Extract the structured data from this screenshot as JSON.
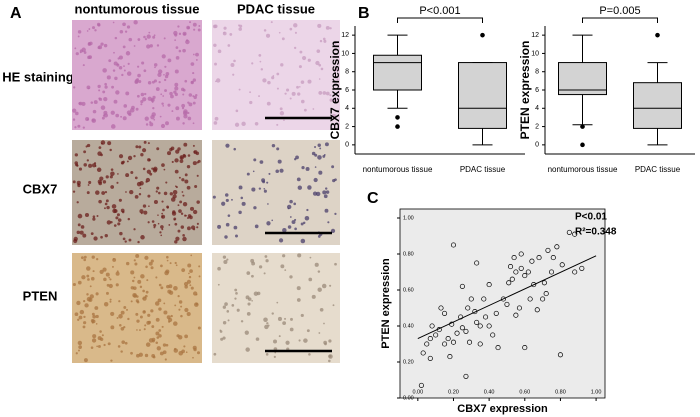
{
  "figure": {
    "panel_labels": [
      "A",
      "B",
      "C"
    ],
    "columns": [
      "nontumorous tissue",
      "PDAC tissue"
    ],
    "rows": [
      "HE staining",
      "CBX7",
      "PTEN"
    ]
  },
  "chart_data": [
    {
      "type": "box",
      "ylabel": "CBX7 expression",
      "annotation": "P<0.001",
      "categories": [
        "nontumorous tissue",
        "PDAC tissue"
      ],
      "color": "#d3d3d3",
      "boxes": [
        {
          "whislo": 4,
          "q1": 6,
          "med": 9,
          "q3": 9.8,
          "whishi": 12,
          "fliers": [
            2,
            3
          ]
        },
        {
          "whislo": 0,
          "q1": 1.8,
          "med": 4,
          "q3": 9,
          "whishi": 9,
          "fliers": [
            12
          ]
        }
      ],
      "ylim": [
        -1,
        13
      ],
      "yticks": [
        0,
        2,
        4,
        6,
        8,
        10,
        12
      ]
    },
    {
      "type": "box",
      "ylabel": "PTEN expression",
      "annotation": "P=0.005",
      "categories": [
        "nontumorous tissue",
        "PDAC tissue"
      ],
      "color": "#d3d3d3",
      "boxes": [
        {
          "whislo": 2.2,
          "q1": 5.5,
          "med": 6,
          "q3": 9,
          "whishi": 12,
          "fliers": [
            2,
            0
          ]
        },
        {
          "whislo": 0,
          "q1": 1.8,
          "med": 4,
          "q3": 6.8,
          "whishi": 9,
          "fliers": [
            12
          ]
        }
      ],
      "ylim": [
        -1,
        13
      ],
      "yticks": [
        0,
        2,
        4,
        6,
        8,
        10,
        12
      ]
    },
    {
      "type": "scatter",
      "xlabel": "CBX7 expression",
      "ylabel": "PTEN expression",
      "annotations": [
        "P<0.01",
        "R²=0.348"
      ],
      "background": "#ebebeb",
      "x": [
        0.02,
        0.03,
        0.05,
        0.07,
        0.07,
        0.08,
        0.1,
        0.12,
        0.13,
        0.15,
        0.15,
        0.17,
        0.18,
        0.19,
        0.2,
        0.2,
        0.22,
        0.24,
        0.25,
        0.25,
        0.27,
        0.27,
        0.28,
        0.29,
        0.3,
        0.32,
        0.33,
        0.33,
        0.35,
        0.35,
        0.37,
        0.38,
        0.4,
        0.4,
        0.42,
        0.44,
        0.45,
        0.48,
        0.5,
        0.51,
        0.52,
        0.53,
        0.54,
        0.55,
        0.55,
        0.57,
        0.58,
        0.58,
        0.6,
        0.6,
        0.62,
        0.63,
        0.64,
        0.65,
        0.67,
        0.68,
        0.7,
        0.71,
        0.72,
        0.73,
        0.75,
        0.76,
        0.78,
        0.8,
        0.81,
        0.85,
        0.88,
        0.88,
        0.92
      ],
      "y": [
        0.07,
        0.25,
        0.3,
        0.33,
        0.22,
        0.4,
        0.35,
        0.38,
        0.5,
        0.3,
        0.47,
        0.33,
        0.23,
        0.41,
        0.31,
        0.85,
        0.36,
        0.45,
        0.39,
        0.62,
        0.37,
        0.12,
        0.5,
        0.31,
        0.55,
        0.48,
        0.42,
        0.75,
        0.3,
        0.4,
        0.55,
        0.45,
        0.4,
        0.63,
        0.35,
        0.47,
        0.28,
        0.55,
        0.52,
        0.64,
        0.73,
        0.66,
        0.78,
        0.7,
        0.46,
        0.5,
        0.72,
        0.8,
        0.68,
        0.28,
        0.7,
        0.55,
        0.76,
        0.63,
        0.49,
        0.78,
        0.55,
        0.64,
        0.58,
        0.82,
        0.7,
        0.78,
        0.84,
        0.24,
        0.74,
        0.92,
        0.91,
        0.7,
        0.72
      ],
      "fit": {
        "x": [
          0,
          1
        ],
        "y": [
          0.33,
          0.79
        ]
      },
      "xlim": [
        -0.1,
        1.05
      ],
      "ylim": [
        0,
        1.05
      ],
      "xticks": [
        {
          "value": 0,
          "label": "0.00"
        },
        {
          "value": 0.2,
          "label": "0.20"
        },
        {
          "value": 0.4,
          "label": "0.40"
        },
        {
          "value": 0.6,
          "label": "0.60"
        },
        {
          "value": 0.8,
          "label": "0.80"
        },
        {
          "value": 1,
          "label": "1.00"
        }
      ],
      "yticks": [
        {
          "value": 0,
          "label": "0.00"
        },
        {
          "value": 0.2,
          "label": "0.20"
        },
        {
          "value": 0.4,
          "label": "0.40"
        },
        {
          "value": 0.6,
          "label": "0.60"
        },
        {
          "value": 0.8,
          "label": "0.80"
        },
        {
          "value": 1,
          "label": "1.00"
        }
      ]
    }
  ]
}
